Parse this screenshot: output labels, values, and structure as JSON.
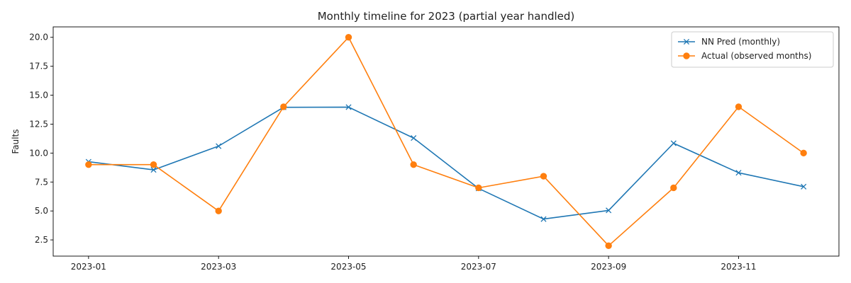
{
  "chart_data": {
    "type": "line",
    "title": "Monthly timeline for 2023 (partial year handled)",
    "xlabel": "",
    "ylabel": "Faults",
    "x": [
      "2023-01",
      "2023-02",
      "2023-03",
      "2023-04",
      "2023-05",
      "2023-06",
      "2023-07",
      "2023-08",
      "2023-09",
      "2023-10",
      "2023-11",
      "2023-12"
    ],
    "x_tick_labels": [
      "2023-01",
      "2023-03",
      "2023-05",
      "2023-07",
      "2023-09",
      "2023-11"
    ],
    "y_tick_labels": [
      "2.5",
      "5.0",
      "7.5",
      "10.0",
      "12.5",
      "15.0",
      "17.5",
      "20.0"
    ],
    "ylim": [
      1.1,
      20.9
    ],
    "grid": false,
    "legend_position": "top-right",
    "series": [
      {
        "name": "NN Pred (monthly)",
        "color": "#1f77b4",
        "marker": "x",
        "values": [
          9.25,
          8.55,
          10.6,
          13.95,
          13.97,
          11.3,
          6.95,
          4.3,
          5.05,
          10.85,
          8.3,
          7.1
        ]
      },
      {
        "name": "Actual (observed months)",
        "color": "#ff7f0e",
        "marker": "circle",
        "values": [
          9,
          9,
          5,
          14,
          20,
          9,
          7,
          8,
          2,
          7,
          14,
          10
        ]
      }
    ]
  }
}
